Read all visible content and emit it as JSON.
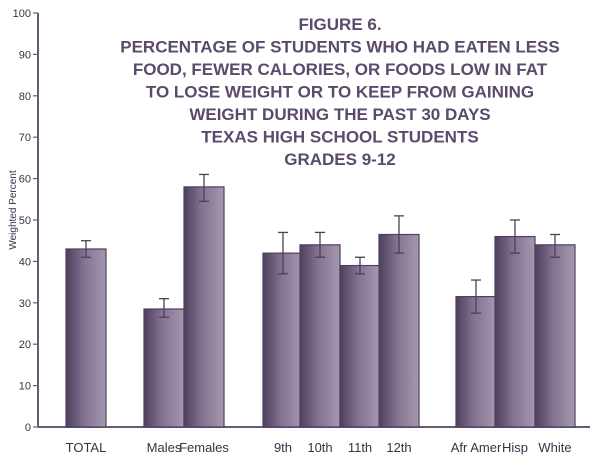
{
  "chart_data": {
    "type": "bar",
    "title_lines": [
      "FIGURE 6.",
      "PERCENTAGE OF STUDENTS WHO HAD EATEN LESS",
      "FOOD, FEWER CALORIES, OR FOODS LOW IN FAT",
      "TO LOSE WEIGHT OR TO KEEP FROM GAINING",
      "WEIGHT  DURING THE PAST 30  DAYS",
      "TEXAS HIGH  SCHOOL STUDENTS",
      "GRADES 9-12"
    ],
    "ylabel": "Weighted Percent",
    "xlabel": "",
    "ylim": [
      0,
      100
    ],
    "yticks": [
      0,
      10,
      20,
      30,
      40,
      50,
      60,
      70,
      80,
      90,
      100
    ],
    "categories": [
      "TOTAL",
      "Males",
      "Females",
      "9th",
      "10th",
      "11th",
      "12th",
      "Afr Amer",
      "Hisp",
      "White"
    ],
    "groups": [
      [
        0
      ],
      [
        1,
        2
      ],
      [
        3,
        4,
        5,
        6
      ],
      [
        7,
        8,
        9
      ]
    ],
    "values": [
      43,
      28.5,
      58,
      42,
      44,
      39,
      46.5,
      31.5,
      46,
      44
    ],
    "error_low": [
      41,
      26.5,
      54.5,
      37,
      41,
      37,
      42,
      27.5,
      42,
      41
    ],
    "error_high": [
      45,
      31,
      61,
      47,
      47,
      41,
      51,
      35.5,
      50,
      46.5
    ],
    "grid": false,
    "colors": {
      "bar_fill": "#82738f",
      "bar_dark": "#4e3f5d",
      "bar_highlight": "#a598b0",
      "axis": "#6a5a78",
      "title": "#5b4a6c",
      "text": "#3c3048"
    }
  }
}
